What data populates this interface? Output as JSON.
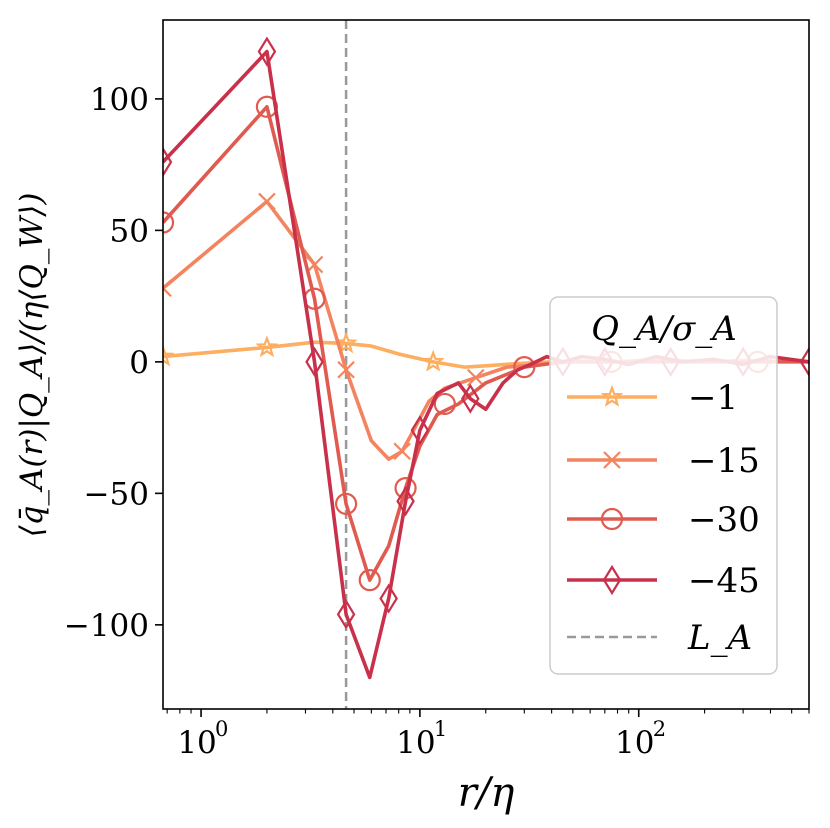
{
  "chart_data": {
    "type": "line",
    "xscale": "log",
    "xlim": [
      0.67,
      600
    ],
    "ylim": [
      -132,
      130
    ],
    "xlabel": "r/η",
    "ylabel": "⟨q̄_A(r)|Q_A⟩/(η⟨Q_W⟩)",
    "x_ticks": [
      {
        "value": 1,
        "base": "10",
        "exp": "0"
      },
      {
        "value": 10,
        "base": "10",
        "exp": "1"
      },
      {
        "value": 100,
        "base": "10",
        "exp": "2"
      }
    ],
    "y_ticks": [
      {
        "value": 100,
        "label": "100"
      },
      {
        "value": 50,
        "label": "50"
      },
      {
        "value": 0,
        "label": "0"
      },
      {
        "value": -50,
        "label": "−50"
      },
      {
        "value": -100,
        "label": "−100"
      }
    ],
    "grid": false,
    "legend": {
      "title": "Q_A/σ_A",
      "location": "center-right"
    },
    "reference_line": {
      "name": "L_A",
      "x": 4.6,
      "color": "#999999",
      "style": "dashed"
    },
    "series": [
      {
        "name": "−1",
        "color": "#fdae61",
        "marker": "star",
        "x": [
          0.67,
          2.0,
          3.3,
          4.6,
          6.0,
          8.0,
          11.5,
          16,
          20,
          30,
          40,
          60,
          80,
          120,
          200,
          300,
          600
        ],
        "y": [
          2,
          5.5,
          7.5,
          7,
          6,
          3,
          0,
          -2,
          -1.5,
          -0.5,
          0,
          0.5,
          0,
          0.5,
          0,
          0.5,
          0
        ],
        "marker_x": [
          0.67,
          2.0,
          4.6,
          11.5
        ],
        "marker_y": [
          2,
          5.5,
          7,
          0
        ]
      },
      {
        "name": "−15",
        "color": "#f4845f",
        "marker": "x",
        "x": [
          0.67,
          2.0,
          3.3,
          4.6,
          6.0,
          7.2,
          8.3,
          9.5,
          11,
          13,
          18,
          25,
          35,
          50,
          80,
          120,
          200,
          300,
          600
        ],
        "y": [
          28,
          61,
          37,
          -3,
          -30,
          -37,
          -34,
          -25,
          -15,
          -10,
          -6,
          -2,
          -1,
          0,
          0,
          1,
          0,
          0.5,
          0
        ],
        "marker_x": [
          0.67,
          2.0,
          3.3,
          4.6,
          8.3,
          18
        ],
        "marker_y": [
          28,
          61,
          37,
          -3,
          -34,
          -6
        ]
      },
      {
        "name": "−30",
        "color": "#e05a50",
        "marker": "circle",
        "x": [
          0.67,
          2.0,
          3.3,
          4.6,
          5.9,
          7.2,
          8.6,
          10,
          12,
          15,
          20,
          30,
          45,
          75,
          120,
          200,
          350,
          600
        ],
        "y": [
          53,
          97,
          24,
          -54,
          -83,
          -70,
          -48,
          -32,
          -20,
          -16,
          -8,
          -2,
          0,
          0,
          0,
          0,
          0,
          0
        ],
        "marker_x": [
          0.67,
          2.0,
          3.3,
          4.6,
          5.9,
          8.6,
          13,
          30,
          75,
          350
        ],
        "marker_y": [
          53,
          97,
          24,
          -54,
          -83,
          -48,
          -16,
          -2,
          0,
          0
        ]
      },
      {
        "name": "−45",
        "color": "#c9304a",
        "marker": "diamond",
        "x": [
          0.67,
          2.0,
          3.3,
          4.6,
          5.9,
          7.2,
          8.6,
          10,
          12,
          15,
          17,
          20,
          24,
          28,
          32,
          38,
          45,
          55,
          70,
          90,
          120,
          160,
          220,
          300,
          400,
          600
        ],
        "y": [
          76,
          118,
          0,
          -96,
          -120,
          -90,
          -53,
          -26,
          -12,
          -8,
          -14,
          -18,
          -8,
          -3,
          -1,
          2,
          0,
          2,
          1,
          -1,
          2,
          0,
          1,
          -1,
          2,
          0
        ],
        "marker_x": [
          0.67,
          2.0,
          3.3,
          4.6,
          7.2,
          8.6,
          10,
          17,
          45,
          70,
          140,
          300,
          600
        ],
        "marker_y": [
          76,
          118,
          0,
          -96,
          -90,
          -53,
          -26,
          -14,
          0,
          0,
          0,
          0,
          0
        ]
      }
    ]
  }
}
